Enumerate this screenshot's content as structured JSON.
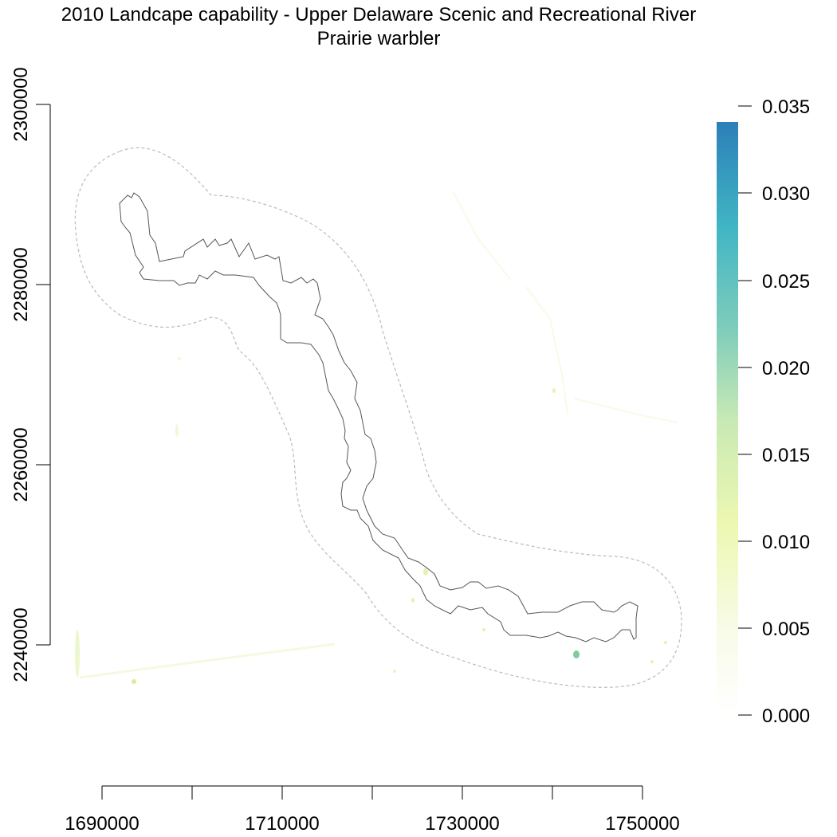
{
  "title": "2010 Landcape capability - Upper Delaware Scenic and Recreational River",
  "subtitle": "Prairie warbler",
  "map": {
    "x_ticks": [
      "1690000",
      "1710000",
      "1730000",
      "1750000"
    ],
    "y_ticks": [
      "2240000",
      "2260000",
      "2280000",
      "2300000"
    ],
    "x_range": [
      1690000,
      1750000
    ],
    "y_range": [
      2240000,
      2300000
    ],
    "boundary_color": "#555555",
    "buffer_color": "#bbbbbb"
  },
  "legend": {
    "ticks": [
      "0.000",
      "0.005",
      "0.010",
      "0.015",
      "0.020",
      "0.025",
      "0.030",
      "0.035"
    ],
    "range": [
      0,
      0.035
    ],
    "colors": [
      "#ffffff",
      "#f3f9d9",
      "#edf8b1",
      "#c7e9b4",
      "#7fcdbb",
      "#41b6c4",
      "#2c7fb8"
    ]
  }
}
